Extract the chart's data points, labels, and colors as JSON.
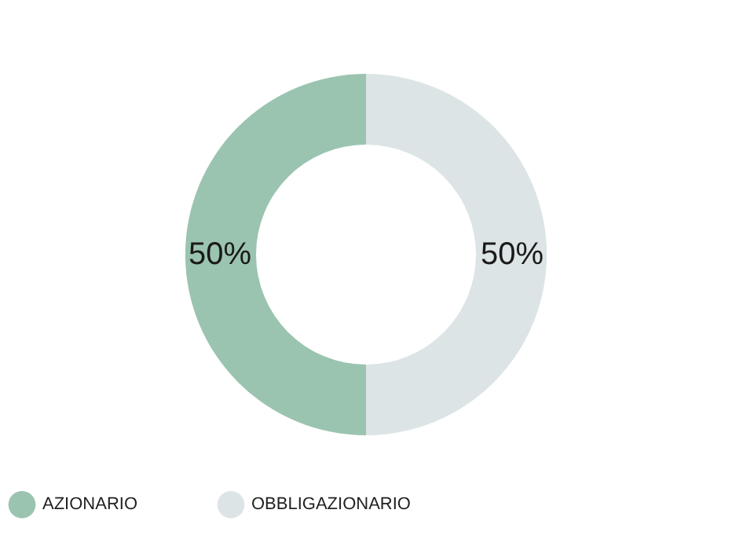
{
  "chart_data": {
    "type": "donut",
    "categories": [
      "AZIONARIO",
      "OBBLIGAZIONARIO"
    ],
    "values": [
      50,
      50
    ],
    "colors": [
      "#9bc4b0",
      "#dce4e6"
    ],
    "value_labels": [
      "50%",
      "50%"
    ],
    "legend": "bottom"
  }
}
